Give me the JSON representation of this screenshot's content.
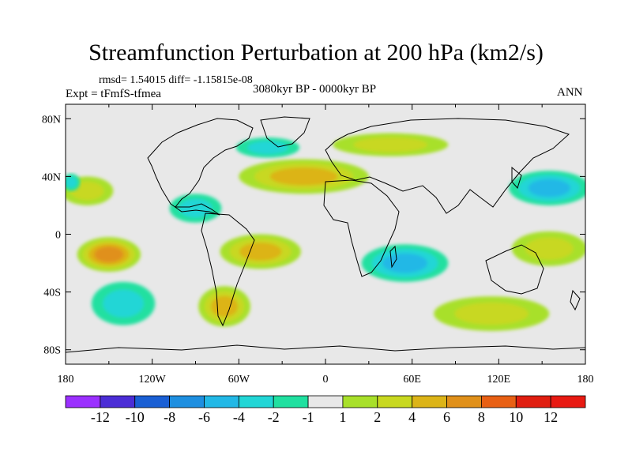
{
  "chart_data": {
    "type": "heatmap",
    "title": "Streamfunction Perturbation at 200 hPa (km2/s)",
    "stats_text": "rmsd= 1.54015 diff= -1.15815e-08",
    "experiment": "Expt = tFmfS-tfmea",
    "period": "3080kyr BP - 0000kyr BP",
    "season": "ANN",
    "xlim": [
      -180,
      180
    ],
    "ylim": [
      -90,
      90
    ],
    "x_ticks": [
      {
        "value": -180,
        "label": "180"
      },
      {
        "value": -120,
        "label": "120W"
      },
      {
        "value": -60,
        "label": "60W"
      },
      {
        "value": 0,
        "label": "0"
      },
      {
        "value": 60,
        "label": "60E"
      },
      {
        "value": 120,
        "label": "120E"
      },
      {
        "value": 180,
        "label": "180"
      }
    ],
    "y_ticks": [
      {
        "value": 80,
        "label": "80N"
      },
      {
        "value": 40,
        "label": "40N"
      },
      {
        "value": 0,
        "label": "0"
      },
      {
        "value": -40,
        "label": "40S"
      },
      {
        "value": -80,
        "label": "80S"
      }
    ],
    "colorbar": {
      "levels": [
        "-12",
        "-10",
        "-8",
        "-6",
        "-4",
        "-2",
        "-1",
        "1",
        "2",
        "4",
        "6",
        "8",
        "10",
        "12"
      ],
      "colors": [
        "#9b30ff",
        "#4b2dd6",
        "#1a5fd4",
        "#1e8fe0",
        "#22b8e6",
        "#22d6d6",
        "#20e0a0",
        "#e8e8e8",
        "#a8e02a",
        "#c8d820",
        "#dcb418",
        "#e0901a",
        "#e86014",
        "#e01e10",
        "#e81a12"
      ]
    },
    "features": [
      {
        "name": "north-pacific-positive",
        "lon": -165,
        "lat": 30,
        "rx": 18,
        "ry": 10,
        "value": 2
      },
      {
        "name": "pacific-west-negative",
        "lon": -176,
        "lat": 36,
        "rx": 6,
        "ry": 6,
        "value": -2
      },
      {
        "name": "south-pacific-positive",
        "lon": -150,
        "lat": -14,
        "rx": 22,
        "ry": 12,
        "value": 6
      },
      {
        "name": "southeast-pacific-negative",
        "lon": -140,
        "lat": -48,
        "rx": 22,
        "ry": 15,
        "value": -3
      },
      {
        "name": "greenland-negative",
        "lon": -40,
        "lat": 60,
        "rx": 22,
        "ry": 7,
        "value": -2
      },
      {
        "name": "atlantic-positive",
        "lon": -15,
        "lat": 40,
        "rx": 45,
        "ry": 12,
        "value": 4
      },
      {
        "name": "eurasia-positive",
        "lon": 45,
        "lat": 62,
        "rx": 40,
        "ry": 8,
        "value": 2
      },
      {
        "name": "caribbean-negative",
        "lon": -90,
        "lat": 18,
        "rx": 18,
        "ry": 10,
        "value": -2
      },
      {
        "name": "south-america-positive",
        "lon": -45,
        "lat": -12,
        "rx": 28,
        "ry": 12,
        "value": 4
      },
      {
        "name": "south-atlantic-positive",
        "lon": -70,
        "lat": -50,
        "rx": 18,
        "ry": 14,
        "value": 5
      },
      {
        "name": "indian-ocean-negative",
        "lon": 55,
        "lat": -20,
        "rx": 30,
        "ry": 13,
        "value": -4
      },
      {
        "name": "northwest-pacific-negative",
        "lon": 155,
        "lat": 32,
        "rx": 28,
        "ry": 12,
        "value": -4
      },
      {
        "name": "southwest-pacific-positive",
        "lon": 155,
        "lat": -10,
        "rx": 26,
        "ry": 12,
        "value": 2
      },
      {
        "name": "southern-ocean-positive",
        "lon": 115,
        "lat": -55,
        "rx": 40,
        "ry": 12,
        "value": 2
      }
    ]
  }
}
